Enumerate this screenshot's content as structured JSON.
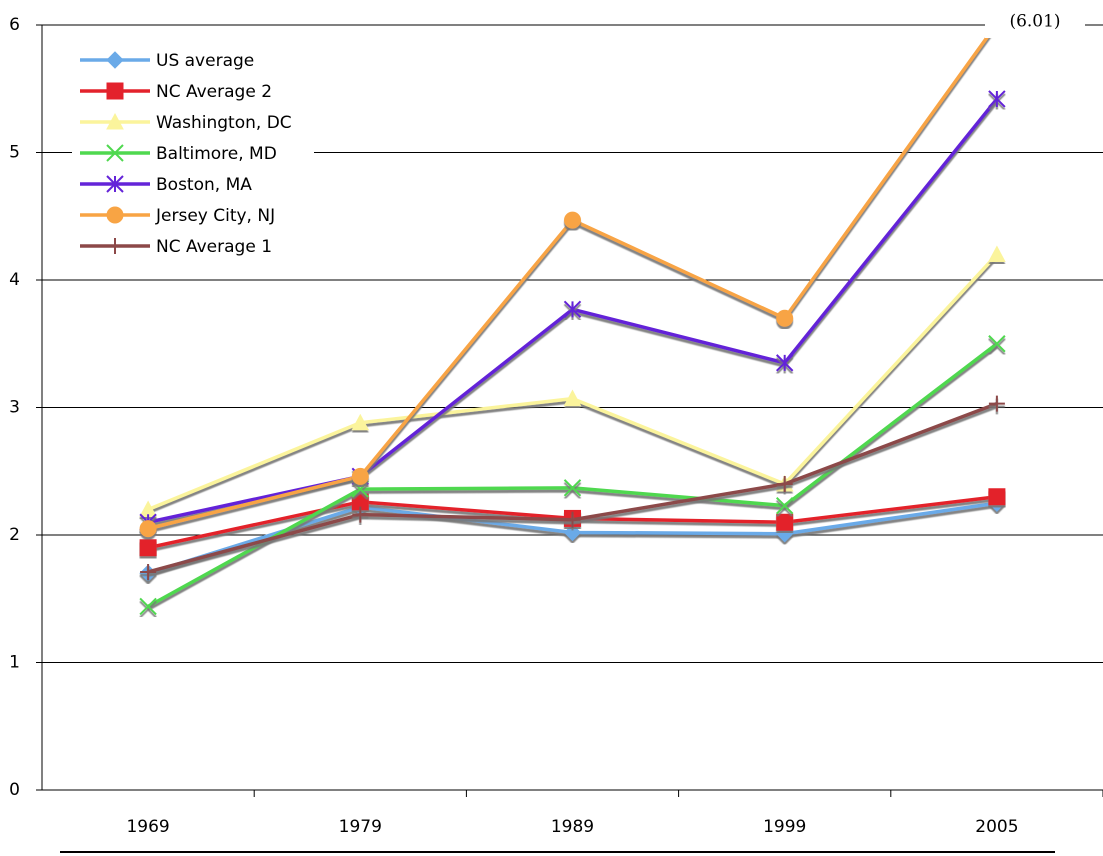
{
  "chart_data": {
    "type": "line",
    "categories": [
      "1969",
      "1979",
      "1989",
      "1999",
      "2005"
    ],
    "series": [
      {
        "name": "US average",
        "color": "#6aaae8",
        "marker": "diamond",
        "values": [
          1.7,
          2.22,
          2.02,
          2.01,
          2.25
        ]
      },
      {
        "name": "NC Average 2",
        "color": "#e3222c",
        "marker": "square",
        "values": [
          1.9,
          2.26,
          2.13,
          2.1,
          2.3
        ]
      },
      {
        "name": "Washington, DC",
        "color": "#fbf49c",
        "marker": "triangle",
        "values": [
          2.2,
          2.88,
          3.07,
          2.4,
          4.2
        ]
      },
      {
        "name": "Baltimore, MD",
        "color": "#4fd84f",
        "marker": "x",
        "values": [
          1.44,
          2.36,
          2.37,
          2.23,
          3.5
        ]
      },
      {
        "name": "Boston, MA",
        "color": "#6424d8",
        "marker": "asterisk",
        "values": [
          2.1,
          2.46,
          3.77,
          3.35,
          5.42
        ]
      },
      {
        "name": "Jersey City, NJ",
        "color": "#f8a444",
        "marker": "circle",
        "values": [
          2.05,
          2.46,
          4.47,
          3.7,
          6.01
        ]
      },
      {
        "name": "NC Average 1",
        "color": "#8c4848",
        "marker": "plus",
        "values": [
          1.71,
          2.16,
          2.12,
          2.4,
          3.03
        ]
      }
    ],
    "ylim": [
      0,
      6
    ],
    "yticks": [
      0,
      1,
      2,
      3,
      4,
      5,
      6
    ],
    "grid": true,
    "legend": "upper left",
    "annotation": "(6.01)"
  }
}
